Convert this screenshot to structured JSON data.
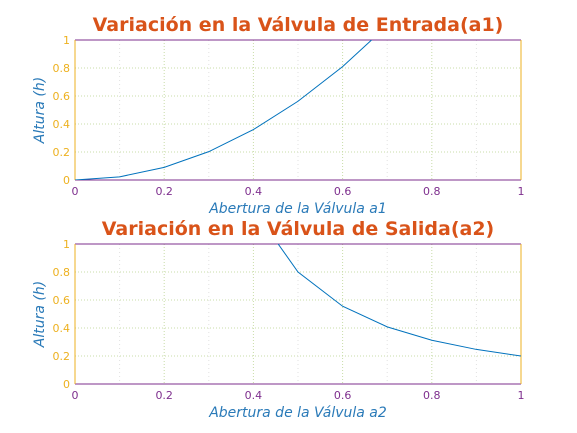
{
  "colors": {
    "title": "#d95319",
    "axis_label": "#2a7ab8",
    "tick_x": "#7e2f8e",
    "tick_y": "#edb120",
    "line": "#0072bd",
    "grid": "#c8dca8",
    "frame_top": "#7e2f8e",
    "frame_right": "#edb120"
  },
  "chart_data": [
    {
      "type": "line",
      "title": "Variación en la Válvula de Entrada(a1)",
      "xlabel": "Abertura de la Válvula a1",
      "ylabel": "Altura (h)",
      "xlim": [
        0,
        1
      ],
      "ylim": [
        0,
        1
      ],
      "xticks": [
        "0",
        "0.2",
        "0.4",
        "0.6",
        "0.8",
        "1"
      ],
      "yticks": [
        "0",
        "0.2",
        "0.4",
        "0.6",
        "0.8",
        "1"
      ],
      "grid": true,
      "x": [
        0,
        0.1,
        0.2,
        0.3,
        0.4,
        0.5,
        0.6,
        0.7
      ],
      "y": [
        0,
        0.0225,
        0.09,
        0.2025,
        0.36,
        0.5625,
        0.81,
        1.1025
      ]
    },
    {
      "type": "line",
      "title": "Variación en la Válvula de Salida(a2)",
      "xlabel": "Abertura de la Válvula a2",
      "ylabel": "Altura (h)",
      "xlim": [
        0,
        1
      ],
      "ylim": [
        0,
        1
      ],
      "xticks": [
        "0",
        "0.2",
        "0.4",
        "0.6",
        "0.8",
        "1"
      ],
      "yticks": [
        "0",
        "0.2",
        "0.4",
        "0.6",
        "0.8",
        "1"
      ],
      "grid": true,
      "x": [
        0.4,
        0.5,
        0.6,
        0.7,
        0.8,
        0.9,
        1.0
      ],
      "y": [
        1.25,
        0.8,
        0.5556,
        0.4082,
        0.3125,
        0.2469,
        0.2
      ]
    }
  ]
}
